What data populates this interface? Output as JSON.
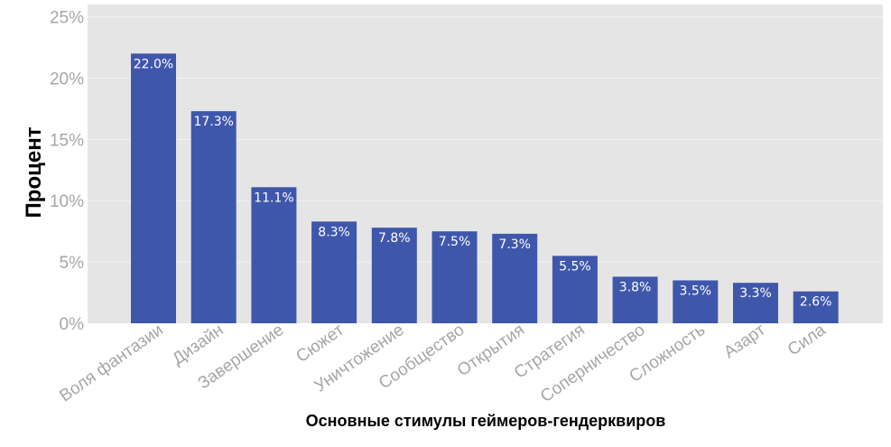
{
  "chart_data": {
    "type": "bar",
    "title": "",
    "xlabel": "Основные стимулы геймеров-гендерквиров",
    "ylabel": "Процент",
    "ylim": [
      0,
      26
    ],
    "yticks": [
      0,
      5,
      10,
      15,
      20,
      25
    ],
    "ytick_labels": [
      "0%",
      "5%",
      "10%",
      "15%",
      "20%",
      "25%"
    ],
    "categories": [
      "Воля фантазии",
      "Дизайн",
      "Завершение",
      "Сюжет",
      "Уничтожение",
      "Сообщество",
      "Открытия",
      "Стратегия",
      "Соперничество",
      "Сложность",
      "Азарт",
      "Сила"
    ],
    "values": [
      22.0,
      17.3,
      11.1,
      8.3,
      7.8,
      7.5,
      7.3,
      5.5,
      3.8,
      3.5,
      3.3,
      2.6
    ],
    "data_labels": [
      "22.0%",
      "17.3%",
      "11.1%",
      "8.3%",
      "7.8%",
      "7.5%",
      "7.3%",
      "5.5%",
      "3.8%",
      "3.5%",
      "3.3%",
      "2.6%"
    ],
    "grid": true,
    "legend": "none"
  },
  "colors": {
    "bar": "#3f57ab",
    "plot_background": "#e5e5e5",
    "gridline": "#f2f2f2",
    "tick_text": "#a6a6a6",
    "data_label_text": "#ffffff"
  }
}
